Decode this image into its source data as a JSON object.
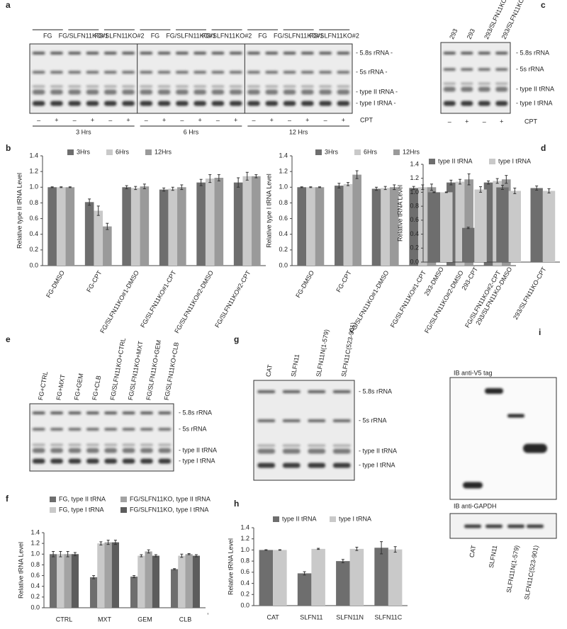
{
  "panel_letters": [
    "a",
    "b",
    "c",
    "d",
    "e",
    "f",
    "g",
    "h",
    "i"
  ],
  "gels": {
    "a": {
      "groups": [
        "FG",
        "FG/SLFN11KO#1",
        "FG/SLFN11KO#2",
        "FG",
        "FG/SLFN11KO#1",
        "FG/SLFN11KO#2",
        "FG",
        "FG/SLFN11KO#1",
        "FG/SLFN11KO#2"
      ],
      "bands": [
        "- 5.8s rRNA -",
        "- 5s rRNA -",
        "- type II tRNA -",
        "- type I tRNA -"
      ],
      "treatment": [
        "–",
        "+",
        "–",
        "+",
        "–",
        "+",
        "–",
        "+",
        "–",
        "+",
        "–",
        "+",
        "–",
        "+",
        "–",
        "+",
        "–",
        "+"
      ],
      "treatment_label": "CPT",
      "times": [
        "3 Hrs",
        "6 Hrs",
        "12 Hrs"
      ]
    },
    "c": {
      "lanes": [
        "293",
        "293",
        "293/SLFN11KO",
        "293/SLFN11KO"
      ],
      "bands": [
        "- 5.8s rRNA",
        "- 5s rRNA",
        "- type II tRNA",
        "- type I tRNA"
      ],
      "treatment": [
        "–",
        "+",
        "–",
        "+"
      ],
      "treatment_label": "CPT"
    },
    "e": {
      "lanes": [
        "FG+CTRL",
        "FG+MXT",
        "FG+GEM",
        "FG+CLB",
        "FG/SLFN11KO+CTRL",
        "FG/SLFN11KO+MXT",
        "FG/SLFN11KO+GEM",
        "FG/SLFN11KO+CLB"
      ],
      "bands": [
        "- 5.8s rRNA",
        "- 5s rRNA",
        "- type II tRNA",
        "- type I tRNA"
      ]
    },
    "g": {
      "lanes": [
        "CAT",
        "SLFN11",
        "SLFN11N(1-579)",
        "SLFN11C(523-901)"
      ],
      "bands": [
        "- 5.8s rRNA",
        "- 5s rRNA",
        "- type II tRNA",
        "- type I tRNA"
      ]
    },
    "i": {
      "blots": [
        "IB anti-V5 tag",
        "IB anti-GAPDH"
      ],
      "lanes": [
        "CAT",
        "SLFN11",
        "SLFN11N(1-579)",
        "SLFN11C(523-901)"
      ]
    }
  },
  "chart_data": [
    {
      "type": "bar",
      "y_label": "Relative type II tRNA Level",
      "categories": [
        "FG-DMSO",
        "FG-CPT",
        "FG/SLFN11KO#1-DMSO",
        "FG/SLFN11KO#1-CPT",
        "FG/SLFN11KO#2-DMSO",
        "FG/SLFN11KO#2-CPT"
      ],
      "series": [
        {
          "name": "3Hrs",
          "color": "#6e6e6e",
          "values": [
            1.0,
            0.81,
            1.0,
            0.97,
            1.06,
            1.06
          ],
          "errors": [
            0.005,
            0.04,
            0.02,
            0.02,
            0.04,
            0.06
          ]
        },
        {
          "name": "6Hrs",
          "color": "#c9c9c9",
          "values": [
            1.0,
            0.7,
            0.99,
            0.98,
            1.11,
            1.14
          ],
          "errors": [
            0.005,
            0.06,
            0.02,
            0.02,
            0.05,
            0.05
          ]
        },
        {
          "name": "12Hrs",
          "color": "#9a9a9a",
          "values": [
            1.0,
            0.5,
            1.01,
            1.0,
            1.12,
            1.14
          ],
          "errors": [
            0.005,
            0.04,
            0.03,
            0.03,
            0.04,
            0.02
          ]
        }
      ],
      "ylim": [
        0,
        1.4
      ],
      "yticks": [
        {
          "value": 0,
          "label": "0.0"
        },
        0.2,
        0.4,
        0.6,
        0.8,
        {
          "value": 1,
          "label": "1.0"
        },
        1.2,
        1.4
      ],
      "legend": "top"
    },
    {
      "type": "bar",
      "y_label": "Relative type I tRNA Level",
      "categories": [
        "FG-DMSO",
        "FG-CPT",
        "FG/SLFN11KO#1-DMSO",
        "FG/SLFN11KO#1-CPT",
        "FG/SLFN11KO#2-DMSO",
        "FG/SLFN11KO#2-CPT"
      ],
      "series": [
        {
          "name": "3Hrs",
          "color": "#6e6e6e",
          "values": [
            1.0,
            1.02,
            0.98,
            0.99,
            1.06,
            1.06
          ],
          "errors": [
            0.005,
            0.03,
            0.02,
            0.02,
            0.03,
            0.02
          ]
        },
        {
          "name": "6Hrs",
          "color": "#c9c9c9",
          "values": [
            1.0,
            1.04,
            0.99,
            1.0,
            1.07,
            1.08
          ],
          "errors": [
            0.005,
            0.02,
            0.02,
            0.03,
            0.03,
            0.03
          ]
        },
        {
          "name": "12Hrs",
          "color": "#9a9a9a",
          "values": [
            1.0,
            1.16,
            1.0,
            1.0,
            1.1,
            1.1
          ],
          "errors": [
            0.005,
            0.05,
            0.03,
            0.04,
            0.07,
            0.05
          ]
        }
      ],
      "ylim": [
        0,
        1.4
      ],
      "yticks": [
        {
          "value": 0,
          "label": "0.0"
        },
        0.2,
        0.4,
        0.6,
        0.8,
        {
          "value": 1,
          "label": "1.0"
        },
        1.2,
        1.4
      ],
      "legend": "top"
    },
    {
      "type": "bar",
      "y_label": "Relative tRNA Level",
      "categories": [
        "293-DMSO",
        "293-CPT",
        "293/SLFN11KO-DMSO",
        "293/SLFN11KO-CPT"
      ],
      "series": [
        {
          "name": "type II tRNA",
          "color": "#6e6e6e",
          "values": [
            1.0,
            0.49,
            1.07,
            1.06
          ],
          "errors": [
            0.005,
            0.01,
            0.03,
            0.03
          ]
        },
        {
          "name": "type I tRNA",
          "color": "#c9c9c9",
          "values": [
            1.0,
            1.04,
            1.02,
            1.02
          ],
          "errors": [
            0.005,
            0.04,
            0.04,
            0.03
          ]
        }
      ],
      "ylim": [
        0,
        1.4
      ],
      "yticks": [
        {
          "value": 0,
          "label": "0.0"
        },
        0.2,
        0.4,
        0.6,
        0.8,
        {
          "value": 1,
          "label": "1.0"
        },
        1.2,
        1.4
      ],
      "legend": "top"
    },
    {
      "type": "bar",
      "y_label": "Relative tRNA Level",
      "categories": [
        "CTRL",
        "MXT",
        "GEM",
        "CLB"
      ],
      "series": [
        {
          "name": "FG, type II tRNA",
          "color": "#6e6e6e",
          "values": [
            1.0,
            0.57,
            0.58,
            0.72
          ],
          "errors": [
            0.05,
            0.03,
            0.02,
            0.01
          ]
        },
        {
          "name": "FG, type I tRNA",
          "color": "#c9c9c9",
          "values": [
            1.0,
            1.2,
            0.97,
            0.97
          ],
          "errors": [
            0.05,
            0.03,
            0.02,
            0.03
          ]
        },
        {
          "name": "FG/SLFN11KO, type II tRNA",
          "color": "#a3a3a3",
          "values": [
            1.0,
            1.22,
            1.05,
            1.0
          ],
          "errors": [
            0.05,
            0.04,
            0.03,
            0.01
          ]
        },
        {
          "name": "FG/SLFN11KO, type I tRNA",
          "color": "#5c5c5c",
          "values": [
            1.0,
            1.22,
            0.97,
            0.97
          ],
          "errors": [
            0.03,
            0.04,
            0.02,
            0.02
          ]
        }
      ],
      "ylim": [
        0,
        1.4
      ],
      "yticks": [
        {
          "value": 0,
          "label": "0.0"
        },
        0.2,
        0.4,
        0.6,
        0.8,
        {
          "value": 1,
          "label": "1.0"
        },
        1.2,
        1.4
      ],
      "legend": "top",
      "footnote": ","
    },
    {
      "type": "bar",
      "y_label": "Relative tRNA Level",
      "categories": [
        "CAT",
        "SLFN11",
        "SLFN11N",
        "SLFN11C"
      ],
      "series": [
        {
          "name": "type II tRNA",
          "color": "#6e6e6e",
          "values": [
            1.0,
            0.58,
            0.8,
            1.04
          ],
          "errors": [
            0.005,
            0.03,
            0.03,
            0.11
          ]
        },
        {
          "name": "type I tRNA",
          "color": "#c9c9c9",
          "values": [
            1.0,
            1.02,
            1.02,
            1.01
          ],
          "errors": [
            0.005,
            0.01,
            0.03,
            0.05
          ]
        }
      ],
      "ylim": [
        0,
        1.4
      ],
      "yticks": [
        {
          "value": 0,
          "label": "0.0"
        },
        0.2,
        0.4,
        0.6,
        0.8,
        {
          "value": 1,
          "label": "1.0"
        },
        1.2,
        1.4
      ],
      "legend": "top"
    }
  ]
}
